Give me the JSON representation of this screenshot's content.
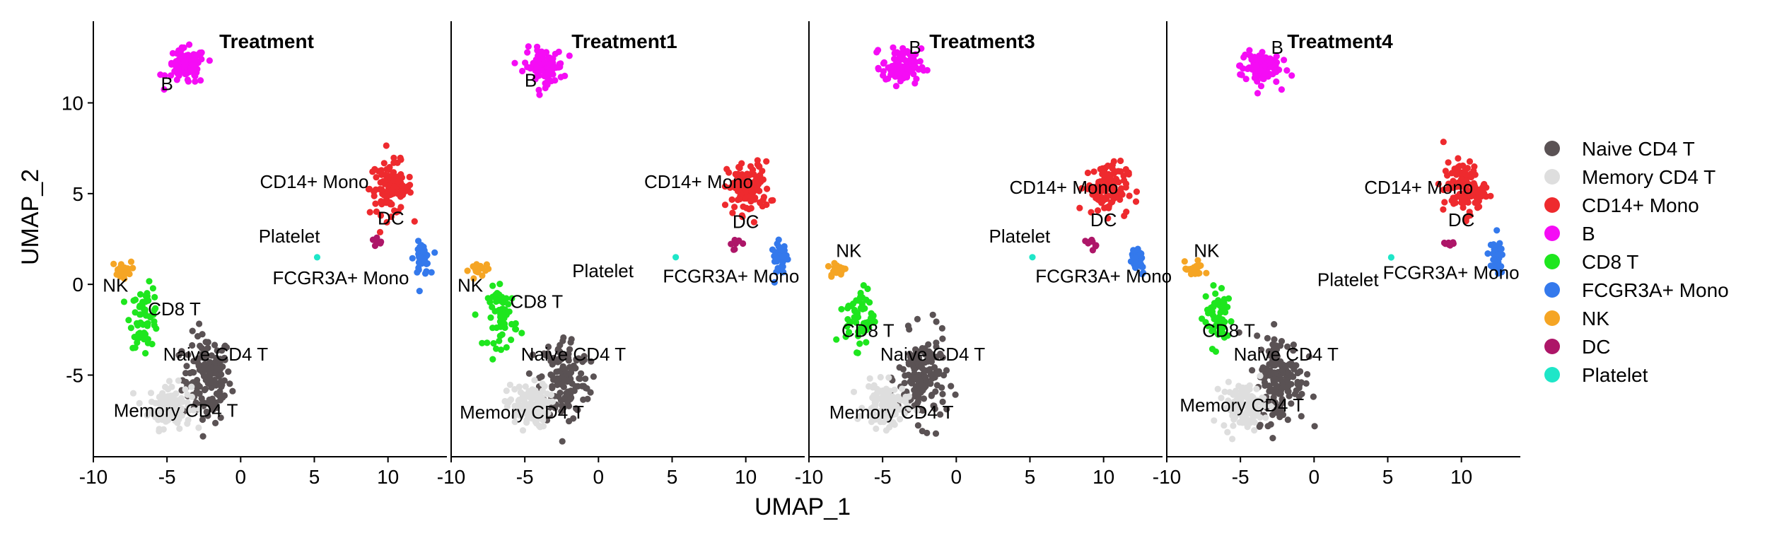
{
  "chart_data": {
    "type": "scatter",
    "panels": [
      "Treatment",
      "Treatment1",
      "Treatment3",
      "Treatment4"
    ],
    "xlabel": "UMAP_1",
    "ylabel": "UMAP_2",
    "xlim": [
      -10,
      14
    ],
    "ylim": [
      -9.5,
      14.5
    ],
    "xticks": [
      -10,
      -5,
      0,
      5,
      10
    ],
    "xtick_labels": [
      "-10",
      "-5",
      "0",
      "5",
      "10"
    ],
    "yticks": [
      -5,
      0,
      5,
      10
    ],
    "ytick_labels": [
      "-5",
      "0",
      "5",
      "10"
    ],
    "legend_position": "right",
    "series": [
      {
        "name": "Naive CD4 T",
        "color": "#5a5254",
        "center": [
          -2.3,
          -5.2
        ],
        "spread": [
          1.5,
          2.2
        ]
      },
      {
        "name": "Memory CD4 T",
        "color": "#dedede",
        "center": [
          -4.8,
          -6.7
        ],
        "spread": [
          1.3,
          1.1
        ]
      },
      {
        "name": "CD14+ Mono",
        "color": "#ee2a2e",
        "center": [
          10.2,
          5.3
        ],
        "spread": [
          1.3,
          1.3
        ]
      },
      {
        "name": "B",
        "color": "#f50cf5",
        "center": [
          -3.7,
          12.0
        ],
        "spread": [
          1.2,
          0.9
        ]
      },
      {
        "name": "CD8 T",
        "color": "#1ee61e",
        "center": [
          -6.5,
          -1.8
        ],
        "spread": [
          0.9,
          1.5
        ]
      },
      {
        "name": "FCGR3A+ Mono",
        "color": "#3479ec",
        "center": [
          12.3,
          1.4
        ],
        "spread": [
          0.5,
          0.8
        ]
      },
      {
        "name": "NK",
        "color": "#f5a524",
        "center": [
          -8.1,
          0.8
        ],
        "spread": [
          0.6,
          0.4
        ]
      },
      {
        "name": "DC",
        "color": "#ad1668",
        "center": [
          9.2,
          2.3
        ],
        "spread": [
          0.4,
          0.3
        ]
      },
      {
        "name": "Platelet",
        "color": "#1ee6c8",
        "center": [
          5.2,
          1.5
        ],
        "spread": [
          0.05,
          0.05
        ]
      }
    ],
    "cluster_labels": [
      [
        {
          "text": "B",
          "x": -5.0,
          "y": 10.7
        },
        {
          "text": "CD14+ Mono",
          "x": 5.0,
          "y": 5.3
        },
        {
          "text": "DC",
          "x": 10.2,
          "y": 3.3
        },
        {
          "text": "Platelet",
          "x": 3.3,
          "y": 2.3
        },
        {
          "text": "FCGR3A+ Mono",
          "x": 6.8,
          "y": 0.0
        },
        {
          "text": "NK",
          "x": -8.5,
          "y": -0.4
        },
        {
          "text": "CD8 T",
          "x": -4.5,
          "y": -1.7
        },
        {
          "text": "Naive CD4 T",
          "x": -1.7,
          "y": -4.2
        },
        {
          "text": "Memory CD4 T",
          "x": -4.4,
          "y": -7.3
        }
      ],
      [
        {
          "text": "B",
          "x": -4.6,
          "y": 10.9
        },
        {
          "text": "CD14+ Mono",
          "x": 6.8,
          "y": 5.3
        },
        {
          "text": "DC",
          "x": 10.0,
          "y": 3.1
        },
        {
          "text": "Platelet",
          "x": 0.3,
          "y": 0.4
        },
        {
          "text": "FCGR3A+ Mono",
          "x": 9.0,
          "y": 0.1
        },
        {
          "text": "NK",
          "x": -8.7,
          "y": -0.4
        },
        {
          "text": "CD8 T",
          "x": -4.2,
          "y": -1.3
        },
        {
          "text": "Naive CD4 T",
          "x": -1.7,
          "y": -4.2
        },
        {
          "text": "Memory CD4 T",
          "x": -5.2,
          "y": -7.4
        }
      ],
      [
        {
          "text": "B",
          "x": -2.8,
          "y": 12.7
        },
        {
          "text": "CD14+ Mono",
          "x": 7.3,
          "y": 5.0
        },
        {
          "text": "DC",
          "x": 10.0,
          "y": 3.2
        },
        {
          "text": "Platelet",
          "x": 4.3,
          "y": 2.3
        },
        {
          "text": "FCGR3A+ Mono",
          "x": 10.0,
          "y": 0.1
        },
        {
          "text": "NK",
          "x": -7.3,
          "y": 1.5
        },
        {
          "text": "CD8 T",
          "x": -6.0,
          "y": -2.9
        },
        {
          "text": "Naive CD4 T",
          "x": -1.6,
          "y": -4.2
        },
        {
          "text": "Memory CD4 T",
          "x": -4.4,
          "y": -7.4
        }
      ],
      [
        {
          "text": "B",
          "x": -2.5,
          "y": 12.7
        },
        {
          "text": "CD14+ Mono",
          "x": 7.1,
          "y": 5.0
        },
        {
          "text": "DC",
          "x": 10.0,
          "y": 3.2
        },
        {
          "text": "Platelet",
          "x": 2.3,
          "y": -0.1
        },
        {
          "text": "FCGR3A+ Mono",
          "x": 9.3,
          "y": 0.3
        },
        {
          "text": "NK",
          "x": -7.3,
          "y": 1.5
        },
        {
          "text": "CD8 T",
          "x": -5.8,
          "y": -2.9
        },
        {
          "text": "Naive CD4 T",
          "x": -1.9,
          "y": -4.2
        },
        {
          "text": "Memory CD4 T",
          "x": -4.9,
          "y": -7.0
        }
      ]
    ]
  }
}
